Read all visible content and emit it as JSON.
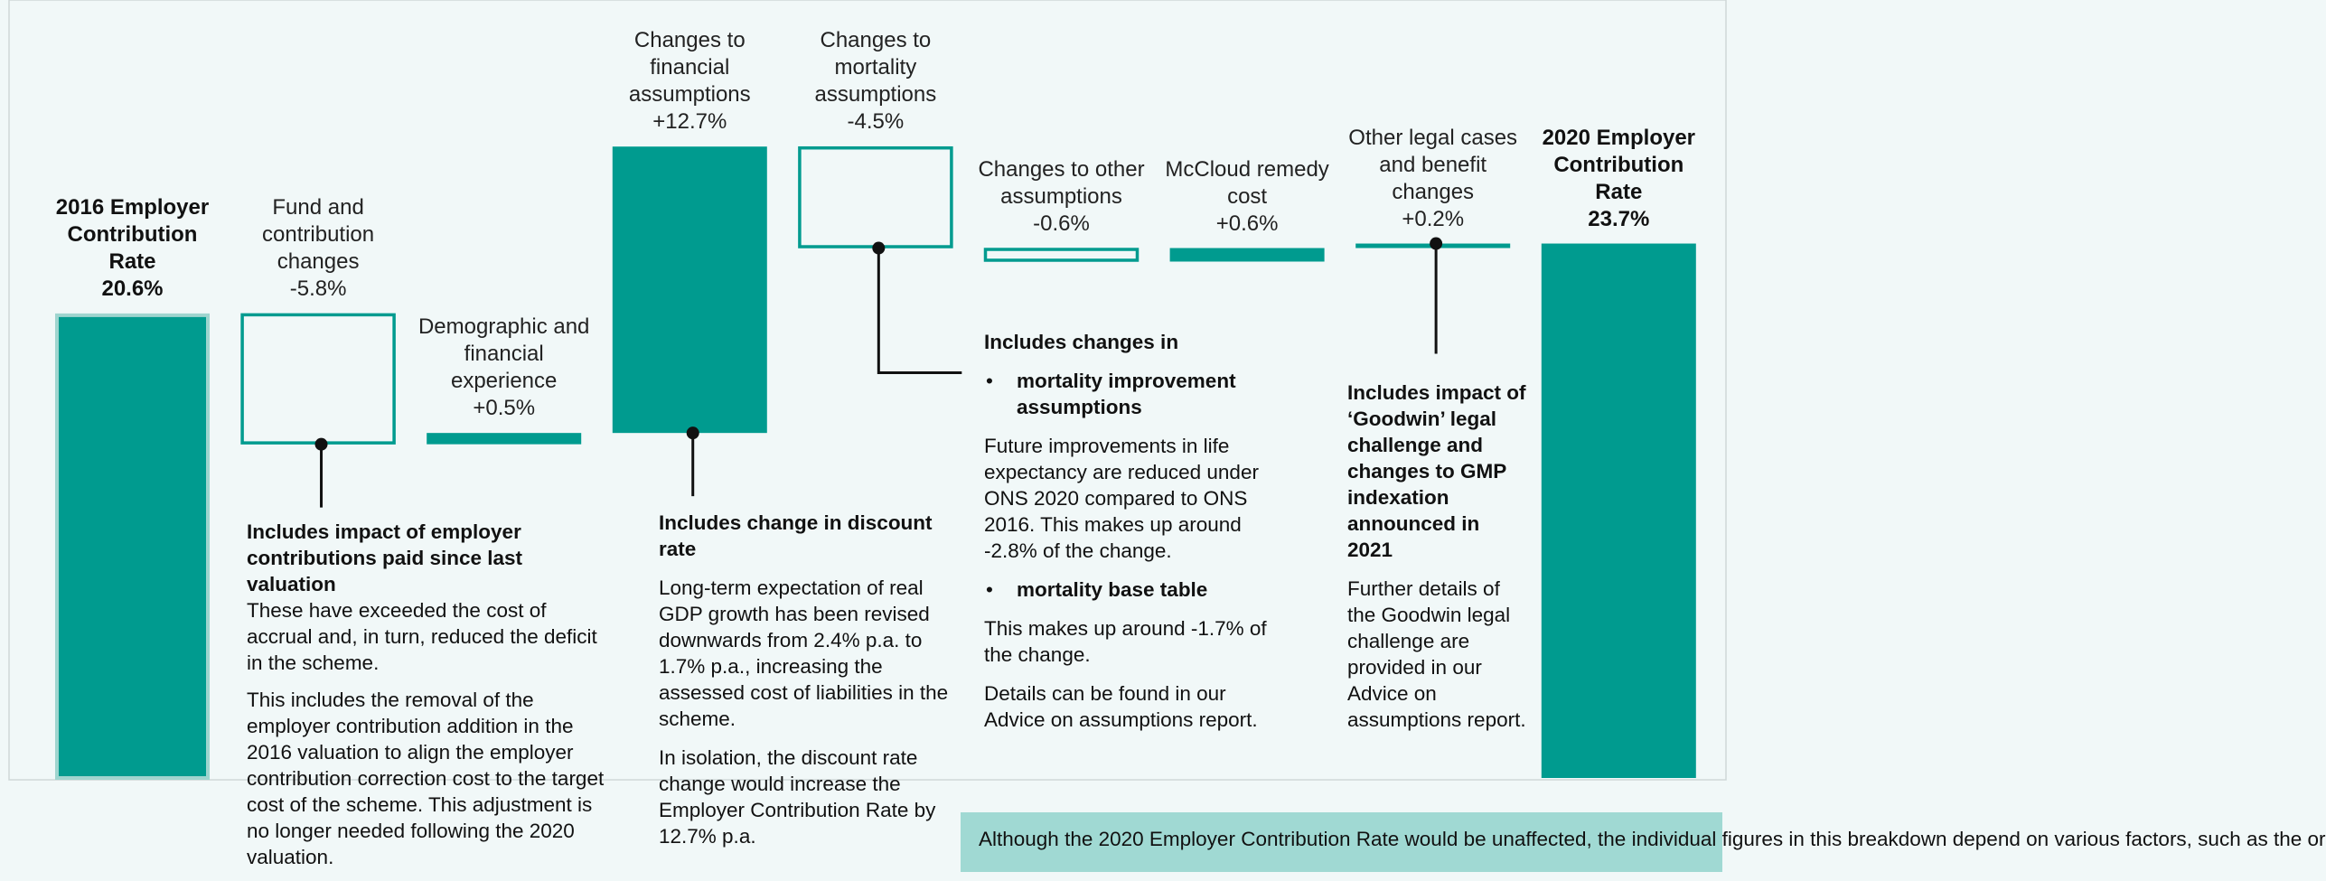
{
  "chart_data": {
    "type": "waterfall",
    "categories": [
      "2016 Employer Contribution Rate",
      "Fund and contribution changes",
      "Demographic and financial experience",
      "Changes to financial assumptions",
      "Changes to mortality assumptions",
      "Changes to other assumptions",
      "McCloud remedy cost",
      "Other legal cases and benefit changes",
      "2020 Employer Contribution Rate"
    ],
    "values": [
      20.6,
      -5.8,
      0.5,
      12.7,
      -4.5,
      -0.6,
      0.6,
      0.2,
      23.7
    ],
    "value_labels": [
      "20.6%",
      "-5.8%",
      "+0.5%",
      "+12.7%",
      "-4.5%",
      "-0.6%",
      "+0.6%",
      "+0.2%",
      "23.7%"
    ],
    "is_total": [
      true,
      false,
      false,
      false,
      false,
      false,
      false,
      false,
      true
    ],
    "color": "#009b8f",
    "ylim": [
      0,
      34.5
    ],
    "annotations": [
      {
        "category": 1,
        "title": "Includes impact of employer contributions paid since last valuation",
        "paragraphs": [
          "These have exceeded the cost of accrual and, in turn, reduced the deficit in the scheme.",
          "This includes the removal of the employer contribution addition in the 2016 valuation to align the employer contribution correction cost to the target cost of the scheme. This adjustment is no longer needed following the 2020 valuation."
        ]
      },
      {
        "category": 3,
        "title": "Includes change in discount rate",
        "paragraphs": [
          "Long-term expectation of real GDP growth has been revised downwards from 2.4% p.a. to 1.7% p.a., increasing the assessed cost of liabilities in the scheme.",
          "In isolation, the discount rate change would increase the Employer Contribution Rate by 12.7% p.a."
        ]
      },
      {
        "category": 4,
        "title": "Includes changes in",
        "items": [
          {
            "bullet": "mortality improvement assumptions",
            "paragraphs": [
              "Future improvements in life expectancy are reduced under ONS 2020 compared to ONS 2016. This makes up around -2.8% of the change."
            ]
          },
          {
            "bullet": "mortality base table",
            "paragraphs": [
              "This makes up around -1.7% of the change.",
              "Details can be found in our Advice on assumptions report."
            ]
          }
        ]
      },
      {
        "category": 7,
        "title": "Includes impact of ‘Goodwin’ legal challenge and changes to GMP indexation announced in 2021",
        "paragraphs": [
          "Further details of the Goodwin legal challenge are provided in our Advice on assumptions report."
        ]
      }
    ],
    "note": "Although the 2020 Employer Contribution Rate would be unaffected, the individual figures in this breakdown depend on various factors, such as the or"
  }
}
